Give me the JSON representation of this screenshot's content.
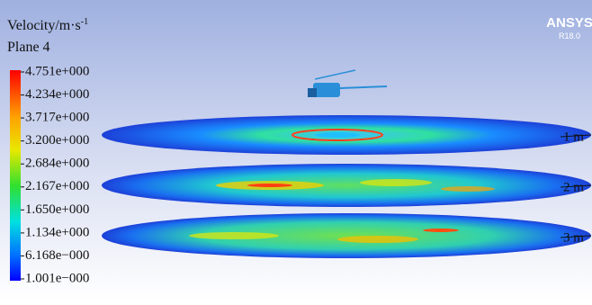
{
  "legend": {
    "title": "Velocity/m·s",
    "title_superscript": "-1",
    "subtitle": "Plane 4",
    "labels": [
      "4.751e+000",
      "4.234e+000",
      "3.717e+000",
      "3.200e+000",
      "2.684e+000",
      "2.167e+000",
      "1.650e+000",
      "1.134e+000",
      "6.168e−000",
      "1.001e−000"
    ]
  },
  "logo": {
    "name": "ANSYS",
    "version": "R18.0"
  },
  "planes": [
    {
      "label": "1 m"
    },
    {
      "label": "2 m"
    },
    {
      "label": "3 m"
    }
  ]
}
